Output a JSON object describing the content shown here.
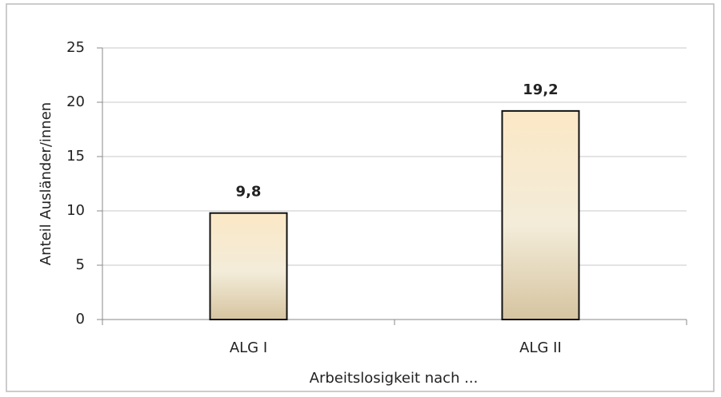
{
  "chart_data": {
    "type": "bar",
    "categories": [
      "ALG I",
      "ALG II"
    ],
    "values": [
      9.8,
      19.2
    ],
    "value_labels": [
      "9,8",
      "19,2"
    ],
    "xlabel": "Arbeitslosigkeit nach ...",
    "ylabel": "Anteil Ausländer/innen",
    "ylim": [
      0,
      25
    ],
    "yticks": [
      0,
      5,
      10,
      15,
      20,
      25
    ],
    "grid": true,
    "color": "#f5e6c8"
  }
}
